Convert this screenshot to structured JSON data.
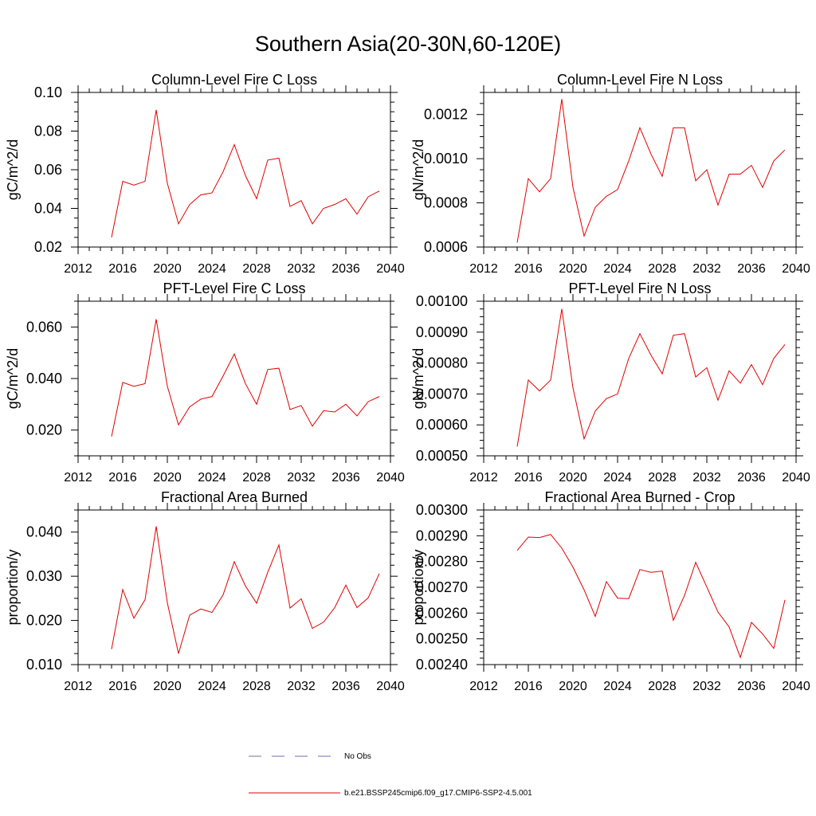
{
  "title": "Southern Asia(20-30N,60-120E)",
  "legend": {
    "obs_label": "No Obs",
    "model_label": "b.e21.BSSP245cmip6.f09_g17.CMIP6-SSP2-4.5.001",
    "obs_color": "#6f6fb4",
    "model_color": "#e00000"
  },
  "chart_data": [
    {
      "type": "line",
      "title": "Column-Level Fire C Loss",
      "ylabel": "gC/m^2/d",
      "xlim": [
        2012,
        2040
      ],
      "xticks": [
        2012,
        2016,
        2020,
        2024,
        2028,
        2032,
        2036,
        2040
      ],
      "xtick_labels": [
        "2012",
        "2016",
        "2020",
        "2024",
        "2028",
        "2032",
        "2036",
        "2040"
      ],
      "ylim": [
        0.02,
        0.1
      ],
      "yticks": [
        0.02,
        0.04,
        0.06,
        0.08,
        0.1
      ],
      "ytick_labels": [
        "0.02",
        "0.04",
        "0.06",
        "0.08",
        "0.10"
      ],
      "x": [
        2015,
        2016,
        2017,
        2018,
        2019,
        2020,
        2021,
        2022,
        2023,
        2024,
        2025,
        2026,
        2027,
        2028,
        2029,
        2030,
        2031,
        2032,
        2033,
        2034,
        2035,
        2036,
        2037,
        2038,
        2039
      ],
      "series": [
        {
          "values": [
            0.025,
            0.054,
            0.052,
            0.054,
            0.091,
            0.053,
            0.032,
            0.042,
            0.047,
            0.048,
            0.059,
            0.073,
            0.057,
            0.045,
            0.065,
            0.066,
            0.041,
            0.044,
            0.032,
            0.04,
            0.042,
            0.045,
            0.037,
            0.046,
            0.049
          ]
        }
      ]
    },
    {
      "type": "line",
      "title": "Column-Level Fire N Loss",
      "ylabel": "gN/m^2/d",
      "xlim": [
        2012,
        2040
      ],
      "xticks": [
        2012,
        2016,
        2020,
        2024,
        2028,
        2032,
        2036,
        2040
      ],
      "xtick_labels": [
        "2012",
        "2016",
        "2020",
        "2024",
        "2028",
        "2032",
        "2036",
        "2040"
      ],
      "ylim": [
        0.0006,
        0.0013
      ],
      "yticks": [
        0.0006,
        0.0008,
        0.001,
        0.0012
      ],
      "ytick_labels": [
        "0.0006",
        "0.0008",
        "0.0010",
        "0.0012"
      ],
      "x": [
        2015,
        2016,
        2017,
        2018,
        2019,
        2020,
        2021,
        2022,
        2023,
        2024,
        2025,
        2026,
        2027,
        2028,
        2029,
        2030,
        2031,
        2032,
        2033,
        2034,
        2035,
        2036,
        2037,
        2038,
        2039
      ],
      "series": [
        {
          "values": [
            0.00062,
            0.00091,
            0.00085,
            0.00091,
            0.00127,
            0.00087,
            0.00065,
            0.00078,
            0.00083,
            0.00086,
            0.00099,
            0.00114,
            0.00102,
            0.00092,
            0.00114,
            0.00114,
            0.0009,
            0.00095,
            0.00079,
            0.00093,
            0.00093,
            0.00097,
            0.00087,
            0.00099,
            0.00104
          ]
        }
      ]
    },
    {
      "type": "line",
      "title": "PFT-Level Fire C Loss",
      "ylabel": "gC/m^2/d",
      "xlim": [
        2012,
        2040
      ],
      "xticks": [
        2012,
        2016,
        2020,
        2024,
        2028,
        2032,
        2036,
        2040
      ],
      "xtick_labels": [
        "2012",
        "2016",
        "2020",
        "2024",
        "2028",
        "2032",
        "2036",
        "2040"
      ],
      "ylim": [
        0.01,
        0.07
      ],
      "yticks": [
        0.02,
        0.04,
        0.06
      ],
      "ytick_labels": [
        "0.020",
        "0.040",
        "0.060"
      ],
      "x": [
        2015,
        2016,
        2017,
        2018,
        2019,
        2020,
        2021,
        2022,
        2023,
        2024,
        2025,
        2026,
        2027,
        2028,
        2029,
        2030,
        2031,
        2032,
        2033,
        2034,
        2035,
        2036,
        2037,
        2038,
        2039
      ],
      "series": [
        {
          "values": [
            0.0175,
            0.0385,
            0.037,
            0.038,
            0.063,
            0.037,
            0.022,
            0.029,
            0.032,
            0.033,
            0.041,
            0.0495,
            0.038,
            0.03,
            0.0435,
            0.044,
            0.028,
            0.0295,
            0.0215,
            0.0275,
            0.027,
            0.03,
            0.0255,
            0.031,
            0.033
          ]
        }
      ]
    },
    {
      "type": "line",
      "title": "PFT-Level Fire N Loss",
      "ylabel": "gN/m^2/d",
      "xlim": [
        2012,
        2040
      ],
      "xticks": [
        2012,
        2016,
        2020,
        2024,
        2028,
        2032,
        2036,
        2040
      ],
      "xtick_labels": [
        "2012",
        "2016",
        "2020",
        "2024",
        "2028",
        "2032",
        "2036",
        "2040"
      ],
      "ylim": [
        0.0005,
        0.001
      ],
      "yticks": [
        0.0005,
        0.0006,
        0.0007,
        0.0008,
        0.0009,
        0.001
      ],
      "ytick_labels": [
        "0.00050",
        "0.00060",
        "0.00070",
        "0.00080",
        "0.00090",
        "0.00100"
      ],
      "x": [
        2015,
        2016,
        2017,
        2018,
        2019,
        2020,
        2021,
        2022,
        2023,
        2024,
        2025,
        2026,
        2027,
        2028,
        2029,
        2030,
        2031,
        2032,
        2033,
        2034,
        2035,
        2036,
        2037,
        2038,
        2039
      ],
      "series": [
        {
          "values": [
            0.00053,
            0.000745,
            0.00071,
            0.000745,
            0.000975,
            0.00072,
            0.000555,
            0.000645,
            0.000685,
            0.0007,
            0.000815,
            0.000895,
            0.000825,
            0.000765,
            0.00089,
            0.000895,
            0.000755,
            0.000785,
            0.00068,
            0.000775,
            0.000735,
            0.000795,
            0.00073,
            0.000815,
            0.00086
          ]
        }
      ]
    },
    {
      "type": "line",
      "title": "Fractional Area Burned",
      "ylabel": "proportion/y",
      "xlim": [
        2012,
        2040
      ],
      "xticks": [
        2012,
        2016,
        2020,
        2024,
        2028,
        2032,
        2036,
        2040
      ],
      "xtick_labels": [
        "2012",
        "2016",
        "2020",
        "2024",
        "2028",
        "2032",
        "2036",
        "2040"
      ],
      "ylim": [
        0.01,
        0.045
      ],
      "yticks": [
        0.01,
        0.02,
        0.03,
        0.04
      ],
      "ytick_labels": [
        "0.010",
        "0.020",
        "0.030",
        "0.040"
      ],
      "x": [
        2015,
        2016,
        2017,
        2018,
        2019,
        2020,
        2021,
        2022,
        2023,
        2024,
        2025,
        2026,
        2027,
        2028,
        2029,
        2030,
        2031,
        2032,
        2033,
        2034,
        2035,
        2036,
        2037,
        2038,
        2039
      ],
      "series": [
        {
          "values": [
            0.0135,
            0.027,
            0.0205,
            0.0247,
            0.0413,
            0.024,
            0.0125,
            0.0212,
            0.0226,
            0.0218,
            0.0258,
            0.0333,
            0.0278,
            0.0239,
            0.0309,
            0.0371,
            0.0228,
            0.0249,
            0.0182,
            0.0196,
            0.0229,
            0.028,
            0.0229,
            0.0251,
            0.0306
          ]
        }
      ]
    },
    {
      "type": "line",
      "title": "Fractional Area Burned - Crop",
      "ylabel": "proportion/y",
      "xlim": [
        2012,
        2040
      ],
      "xticks": [
        2012,
        2016,
        2020,
        2024,
        2028,
        2032,
        2036,
        2040
      ],
      "xtick_labels": [
        "2012",
        "2016",
        "2020",
        "2024",
        "2028",
        "2032",
        "2036",
        "2040"
      ],
      "ylim": [
        0.0024,
        0.003
      ],
      "yticks": [
        0.0024,
        0.0025,
        0.0026,
        0.0027,
        0.0028,
        0.0029,
        0.003
      ],
      "ytick_labels": [
        "0.00240",
        "0.00250",
        "0.00260",
        "0.00270",
        "0.00280",
        "0.00290",
        "0.00300"
      ],
      "x": [
        2015,
        2016,
        2017,
        2018,
        2019,
        2020,
        2021,
        2022,
        2023,
        2024,
        2025,
        2026,
        2027,
        2028,
        2029,
        2030,
        2031,
        2032,
        2033,
        2034,
        2035,
        2036,
        2037,
        2038,
        2039
      ],
      "series": [
        {
          "values": [
            0.002843,
            0.002895,
            0.002893,
            0.002905,
            0.002852,
            0.002778,
            0.00269,
            0.002587,
            0.002722,
            0.002658,
            0.002656,
            0.002769,
            0.002758,
            0.002763,
            0.002572,
            0.002668,
            0.002797,
            0.002701,
            0.002604,
            0.002546,
            0.002428,
            0.002564,
            0.002519,
            0.002463,
            0.002651
          ]
        }
      ]
    }
  ]
}
